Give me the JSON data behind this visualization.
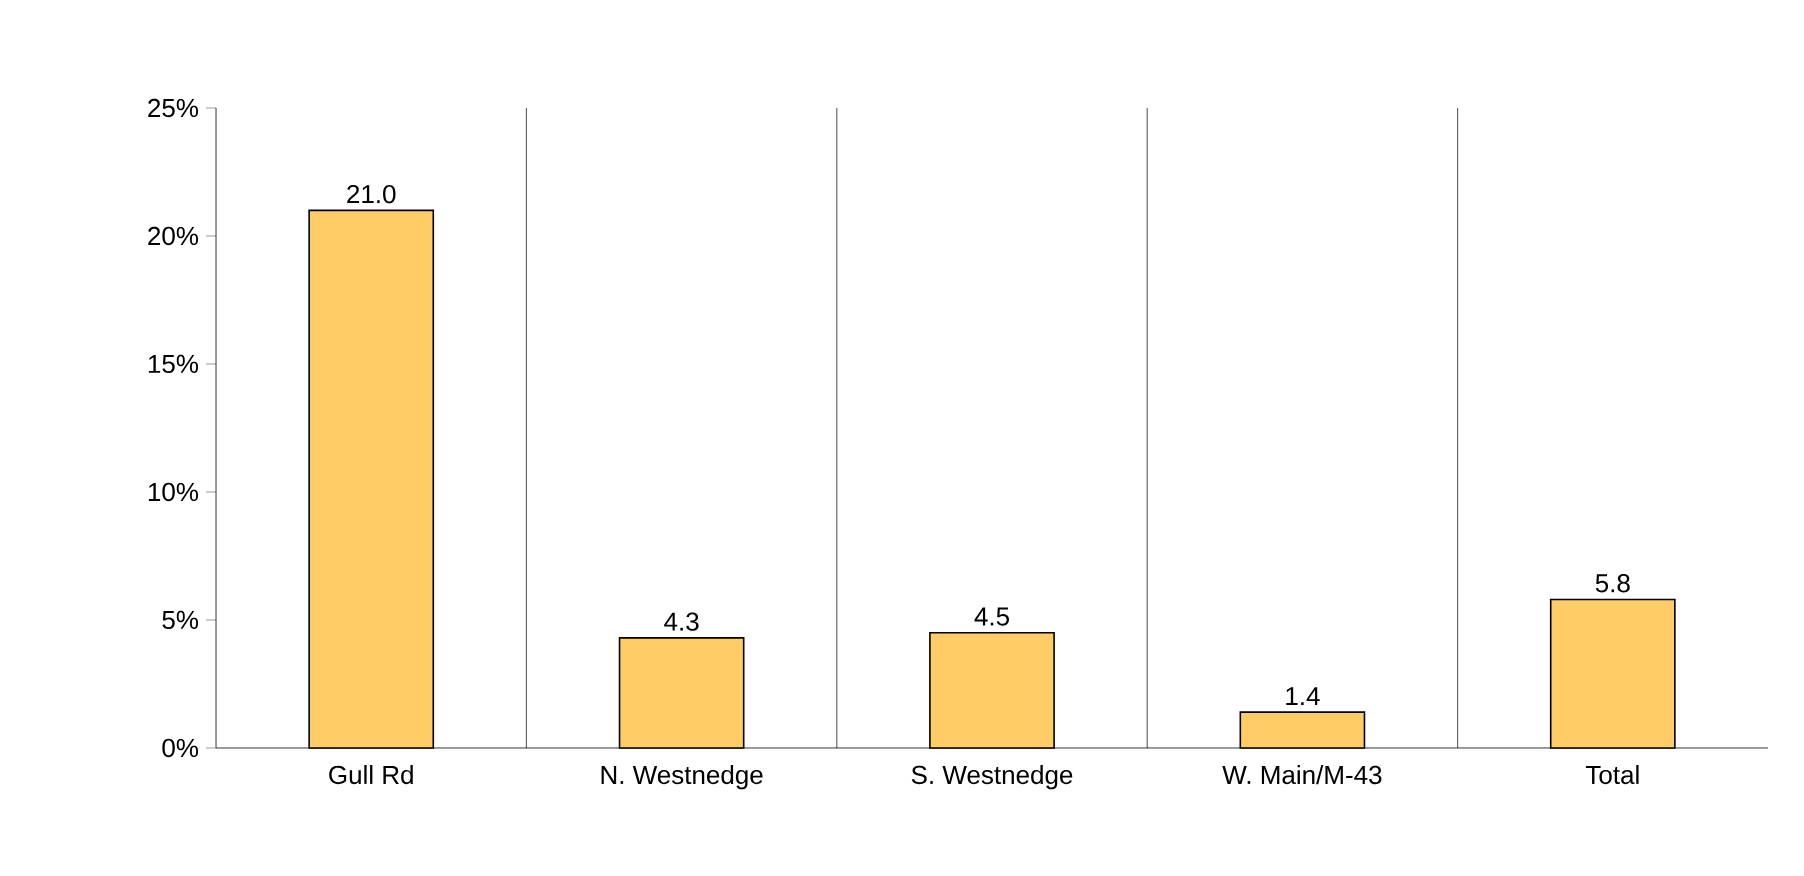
{
  "chart_data": {
    "type": "bar",
    "categories": [
      "Gull Rd",
      "N. Westnedge",
      "S. Westnedge",
      "W. Main/M-43",
      "Total"
    ],
    "values": [
      21.0,
      4.3,
      4.5,
      1.4,
      5.8
    ],
    "value_labels": [
      "21.0",
      "4.3",
      "4.5",
      "1.4",
      "5.8"
    ],
    "color": "#ffcc66",
    "ylim": [
      0,
      25
    ],
    "yticks": [
      {
        "value": 0,
        "label": "0%"
      },
      {
        "value": 5,
        "label": "5%"
      },
      {
        "value": 10,
        "label": "10%"
      },
      {
        "value": 15,
        "label": "15%"
      },
      {
        "value": 20,
        "label": "20%"
      },
      {
        "value": 25,
        "label": "25%"
      }
    ],
    "grid": "x"
  }
}
